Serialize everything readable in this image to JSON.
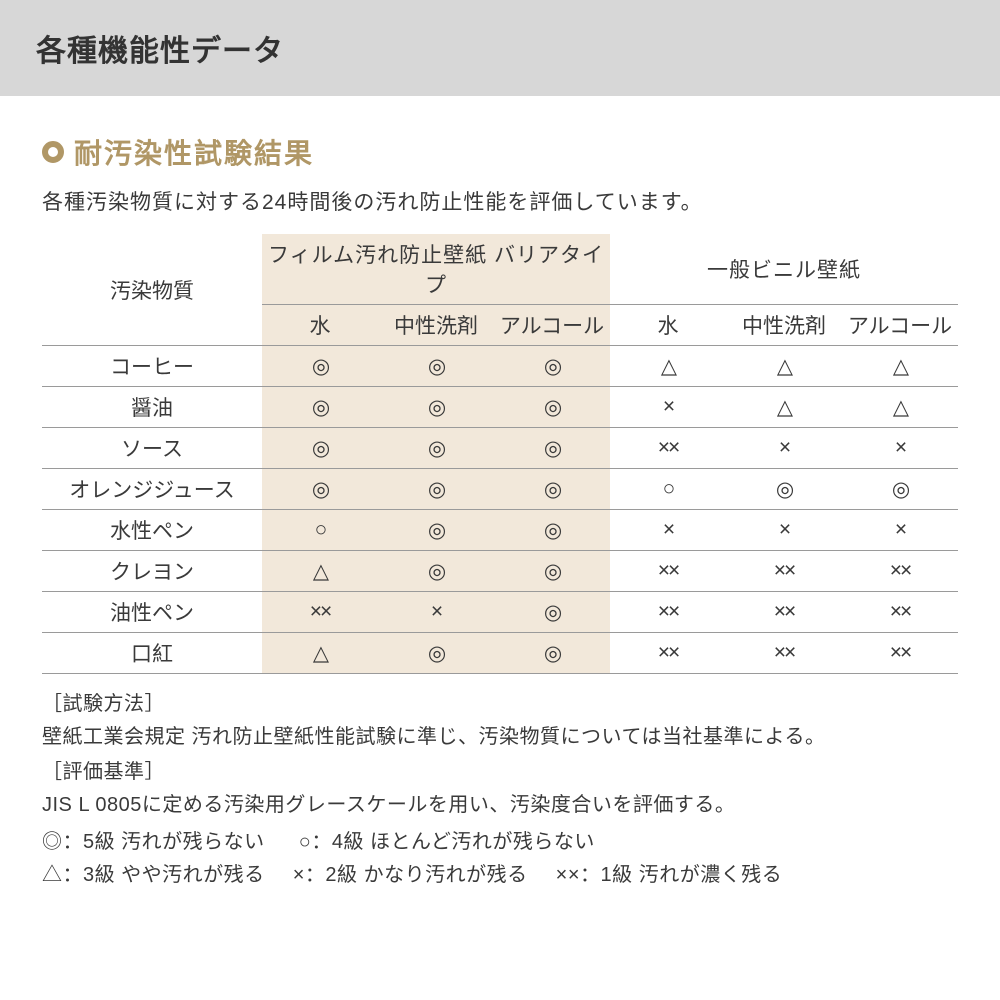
{
  "colors": {
    "banner_bg": "#d7d7d7",
    "banner_text": "#333333",
    "accent": "#b09766",
    "film_bg": "#f2e8da",
    "rule": "#9a9a9a",
    "body_text": "#3a3a3a",
    "page_bg": "#ffffff"
  },
  "banner": {
    "title": "各種機能性データ"
  },
  "section": {
    "title": "耐汚染性試験結果",
    "intro": "各種汚染物質に対する24時間後の汚れ防止性能を評価しています。"
  },
  "table": {
    "corner_label": "汚染物質",
    "groups": [
      {
        "label": "フィルム汚れ防止壁紙 バリアタイプ",
        "class": "film"
      },
      {
        "label": "一般ビニル壁紙",
        "class": "std"
      }
    ],
    "sub_headers": [
      "水",
      "中性洗剤",
      "アルコール",
      "水",
      "中性洗剤",
      "アルコール"
    ],
    "rows": [
      {
        "label": "コーヒー",
        "cells": [
          "◎",
          "◎",
          "◎",
          "△",
          "△",
          "△"
        ]
      },
      {
        "label": "醤油",
        "cells": [
          "◎",
          "◎",
          "◎",
          "×",
          "△",
          "△"
        ]
      },
      {
        "label": "ソース",
        "cells": [
          "◎",
          "◎",
          "◎",
          "××",
          "×",
          "×"
        ]
      },
      {
        "label": "オレンジジュース",
        "cells": [
          "◎",
          "◎",
          "◎",
          "○",
          "◎",
          "◎"
        ]
      },
      {
        "label": "水性ペン",
        "cells": [
          "○",
          "◎",
          "◎",
          "×",
          "×",
          "×"
        ]
      },
      {
        "label": "クレヨン",
        "cells": [
          "△",
          "◎",
          "◎",
          "××",
          "××",
          "××"
        ]
      },
      {
        "label": "油性ペン",
        "cells": [
          "××",
          "×",
          "◎",
          "××",
          "××",
          "××"
        ]
      },
      {
        "label": "口紅",
        "cells": [
          "△",
          "◎",
          "◎",
          "××",
          "××",
          "××"
        ]
      }
    ]
  },
  "notes": {
    "method_label": "［試験方法］",
    "method_text": "壁紙工業会規定 汚れ防止壁紙性能試験に準じ、汚染物質については当社基準による。",
    "criteria_label": "［評価基準］",
    "criteria_text": "JIS L 0805に定める汚染用グレースケールを用い、汚染度合いを評価する。",
    "legend1a": "◎：5級 汚れが残らない",
    "legend1b": "○：4級 ほとんど汚れが残らない",
    "legend2a": "△：3級 やや汚れが残る",
    "legend2b": "×：2級 かなり汚れが残る",
    "legend2c": "××：1級 汚れが濃く残る"
  }
}
